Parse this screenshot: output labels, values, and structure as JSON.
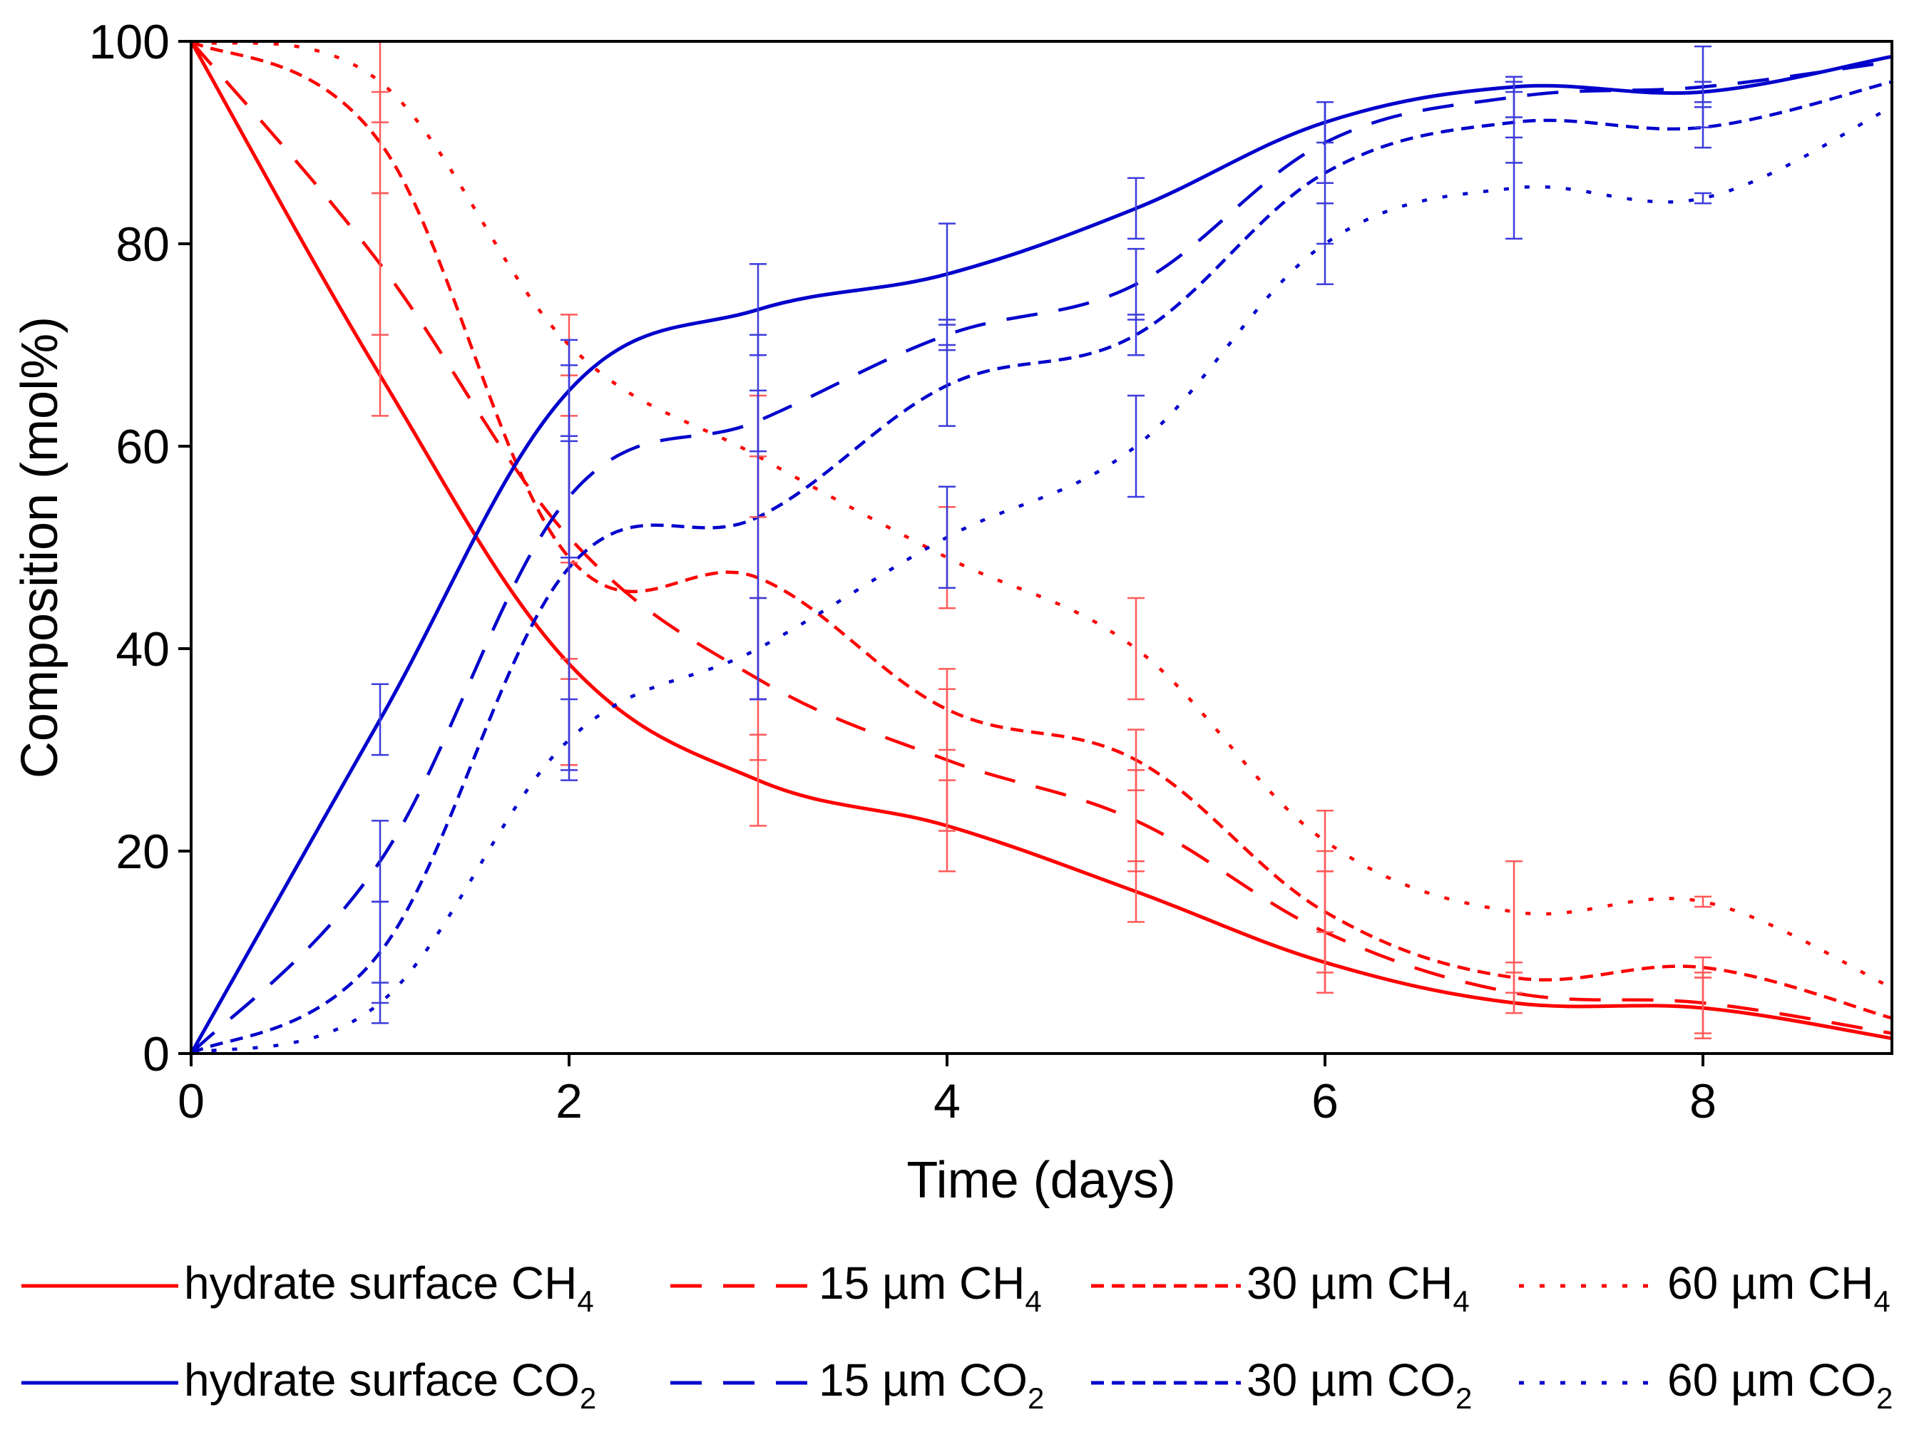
{
  "chart_data": {
    "type": "line",
    "title": "",
    "xlabel": "Time (days)",
    "ylabel": "Composition (mol%)",
    "xlim": [
      0,
      9
    ],
    "ylim": [
      0,
      100
    ],
    "xticks": [
      0,
      2,
      4,
      6,
      8
    ],
    "yticks": [
      0,
      20,
      40,
      60,
      80,
      100
    ],
    "grid": false,
    "legend_position": "bottom",
    "series": [
      {
        "name": "hydrate surface CH4",
        "label": "hydrate surface CH",
        "sub": "4",
        "color": "#ff0000",
        "style": "solid",
        "x": [
          0,
          1,
          2,
          3,
          4,
          5,
          6,
          7,
          8,
          9
        ],
        "y": [
          100,
          67,
          38.5,
          27,
          22.5,
          16,
          9,
          5,
          4.5,
          1.5
        ],
        "err": [
          null,
          4,
          10,
          4.5,
          4.5,
          3,
          3,
          1,
          3,
          null
        ]
      },
      {
        "name": "15 µm CH4",
        "label": "15 µm CH",
        "sub": "4",
        "color": "#ff0000",
        "style": "dash",
        "x": [
          0,
          1,
          2,
          3,
          4,
          5,
          6,
          7,
          8,
          9
        ],
        "y": [
          100,
          78,
          51,
          37,
          29,
          23,
          12,
          6,
          5,
          2
        ],
        "err": [
          null,
          7,
          12,
          8,
          7,
          5,
          6,
          2,
          3,
          null
        ]
      },
      {
        "name": "30 µm CH4",
        "label": "30 µm CH",
        "sub": "4",
        "color": "#ff0000",
        "style": "shortdash",
        "x": [
          0,
          1,
          2,
          3,
          4,
          5,
          6,
          7,
          8,
          9
        ],
        "y": [
          100,
          90,
          49,
          47,
          34,
          29,
          14,
          7.5,
          8.5,
          3.5
        ],
        "err": [
          null,
          5,
          12,
          12,
          4,
          3,
          6,
          1.5,
          1,
          null
        ]
      },
      {
        "name": "60 µm CH4",
        "label": "60 µm CH",
        "sub": "4",
        "color": "#ff0000",
        "style": "dot",
        "x": [
          0,
          1,
          2,
          3,
          4,
          5,
          6,
          7,
          8,
          9
        ],
        "y": [
          100,
          96,
          70,
          59,
          49,
          40,
          21,
          14,
          15,
          6.5
        ],
        "err": [
          null,
          4,
          3,
          6,
          5,
          5,
          3,
          5,
          0.5,
          null
        ]
      },
      {
        "name": "hydrate surface CO2",
        "label": "hydrate surface CO",
        "sub": "2",
        "color": "#0000cc",
        "style": "solid",
        "x": [
          0,
          1,
          2,
          3,
          4,
          5,
          6,
          7,
          8,
          9
        ],
        "y": [
          0,
          33,
          65.5,
          73.5,
          77,
          83.5,
          92,
          95.5,
          95,
          98.5
        ],
        "err": [
          null,
          3.5,
          5,
          4.5,
          5,
          3,
          2,
          0.5,
          1,
          null
        ]
      },
      {
        "name": "15 µm CO2",
        "label": "15 µm CO",
        "sub": "2",
        "color": "#0000cc",
        "style": "dash",
        "x": [
          0,
          1,
          2,
          3,
          4,
          5,
          6,
          7,
          8,
          9
        ],
        "y": [
          0,
          19,
          55,
          62.5,
          71,
          76,
          90,
          94.5,
          95.5,
          98
        ],
        "err": [
          null,
          4,
          6,
          3,
          1.5,
          3.5,
          4,
          2,
          4,
          null
        ]
      },
      {
        "name": "30 µm CO2",
        "label": "30 µm CO",
        "sub": "2",
        "color": "#0000cc",
        "style": "shortdash",
        "x": [
          0,
          1,
          2,
          3,
          4,
          5,
          6,
          7,
          8,
          9
        ],
        "y": [
          0,
          10,
          48,
          53,
          66,
          71,
          87,
          92,
          91.5,
          96
        ],
        "err": [
          null,
          5,
          20,
          18,
          4,
          2,
          7,
          4,
          2,
          null
        ]
      },
      {
        "name": "60 µm CO2",
        "label": "60 µm CO",
        "sub": "2",
        "color": "#0000cc",
        "style": "dot",
        "x": [
          0,
          1,
          2,
          3,
          4,
          5,
          6,
          7,
          8,
          9
        ],
        "y": [
          0,
          5,
          31,
          40,
          51,
          60,
          80,
          85.5,
          84.5,
          93.5
        ],
        "err": [
          null,
          2,
          4,
          5,
          5,
          5,
          4,
          5,
          0.5,
          null
        ]
      }
    ]
  }
}
